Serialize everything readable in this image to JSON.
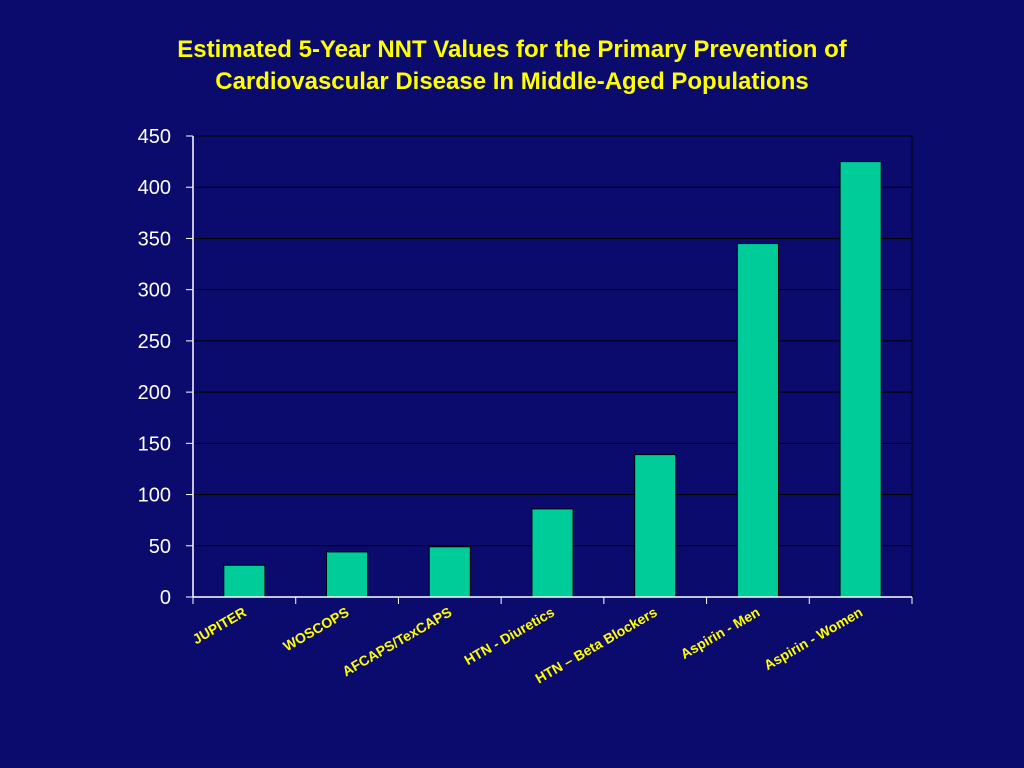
{
  "title": {
    "line1": "Estimated 5-Year NNT Values for the Primary Prevention of",
    "line2": "Cardiovascular Disease In Middle-Aged Populations"
  },
  "colors": {
    "background": "#0b0b6e",
    "bar": "#00cc99",
    "title": "#ffff00",
    "category_labels": "#ffff00",
    "axis_labels": "#ffffff",
    "grid": "#000000"
  },
  "chart_data": {
    "type": "bar",
    "title": "Estimated 5-Year NNT Values for the Primary Prevention of Cardiovascular Disease In Middle-Aged Populations",
    "categories": [
      "JUPITER",
      "WOSCOPS",
      "AFCAPS/TexCAPS",
      "HTN - Diuretics",
      "HTN – Beta Blockers",
      "Aspirin - Men",
      "Aspirin - Women"
    ],
    "values": [
      31,
      44,
      49,
      86,
      139,
      345,
      425
    ],
    "xlabel": "",
    "ylabel": "",
    "ylim": [
      0,
      450
    ],
    "yticks": [
      0,
      50,
      100,
      150,
      200,
      250,
      300,
      350,
      400,
      450
    ],
    "grid": true,
    "legend": "none"
  }
}
